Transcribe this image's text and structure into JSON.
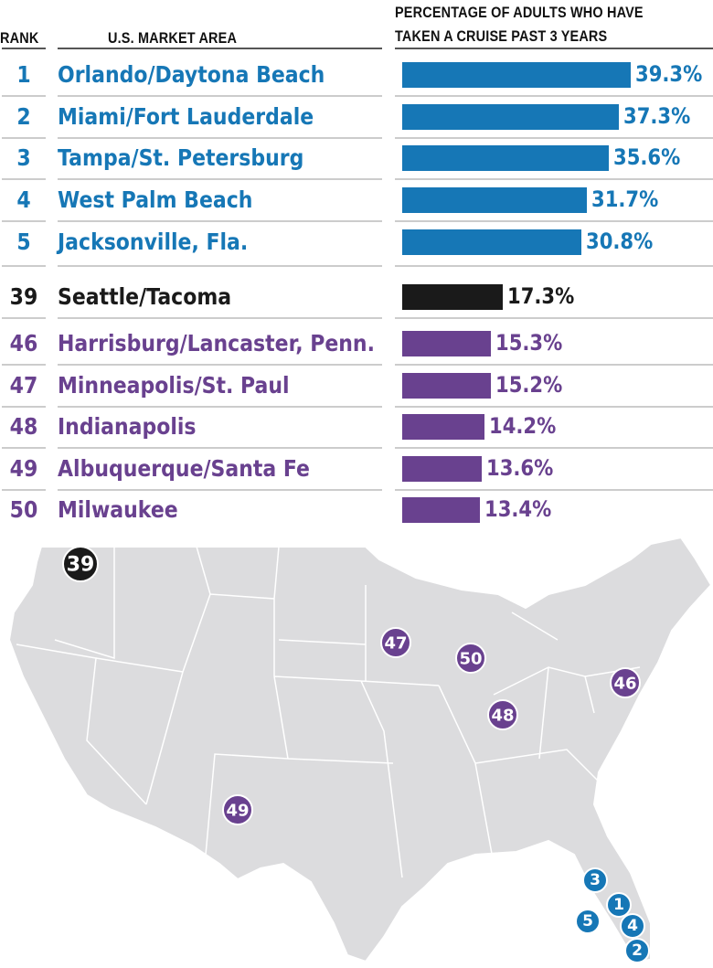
{
  "chart_data": {
    "type": "bar",
    "orientation": "horizontal",
    "headers": {
      "rank": "RANK",
      "area": "U.S. MARKET AREA",
      "value_line1": "PERCENTAGE OF ADULTS WHO HAVE",
      "value_line2": "TAKEN A CRUISE PAST 3 YEARS"
    },
    "rows": [
      {
        "rank": "1",
        "name": "Orlando/Daytona Beach",
        "value": 39.3,
        "label": "39.3%",
        "group": "top"
      },
      {
        "rank": "2",
        "name": "Miami/Fort Lauderdale",
        "value": 37.3,
        "label": "37.3%",
        "group": "top"
      },
      {
        "rank": "3",
        "name": "Tampa/St. Petersburg",
        "value": 35.6,
        "label": "35.6%",
        "group": "top"
      },
      {
        "rank": "4",
        "name": "West Palm Beach",
        "value": 31.7,
        "label": "31.7%",
        "group": "top"
      },
      {
        "rank": "5",
        "name": "Jacksonville, Fla.",
        "value": 30.8,
        "label": "30.8%",
        "group": "top"
      },
      {
        "rank": "39",
        "name": "Seattle/Tacoma",
        "value": 17.3,
        "label": "17.3%",
        "group": "local"
      },
      {
        "rank": "46",
        "name": "Harrisburg/Lancaster, Penn.",
        "value": 15.3,
        "label": "15.3%",
        "group": "bottom"
      },
      {
        "rank": "47",
        "name": "Minneapolis/St. Paul",
        "value": 15.2,
        "label": "15.2%",
        "group": "bottom"
      },
      {
        "rank": "48",
        "name": "Indianapolis",
        "value": 14.2,
        "label": "14.2%",
        "group": "bottom"
      },
      {
        "rank": "49",
        "name": "Albuquerque/Santa Fe",
        "value": 13.6,
        "label": "13.6%",
        "group": "bottom"
      },
      {
        "rank": "50",
        "name": "Milwaukee",
        "value": 13.4,
        "label": "13.4%",
        "group": "bottom"
      }
    ],
    "xlim": [
      0,
      39.3
    ],
    "colors": {
      "top": "#1677b6",
      "local": "#1a1a1a",
      "bottom": "#69418f"
    }
  },
  "map": {
    "land_color": "#dcdcde",
    "markers": [
      "39",
      "47",
      "50",
      "48",
      "46",
      "49",
      "3",
      "1",
      "5",
      "4",
      "2"
    ]
  }
}
